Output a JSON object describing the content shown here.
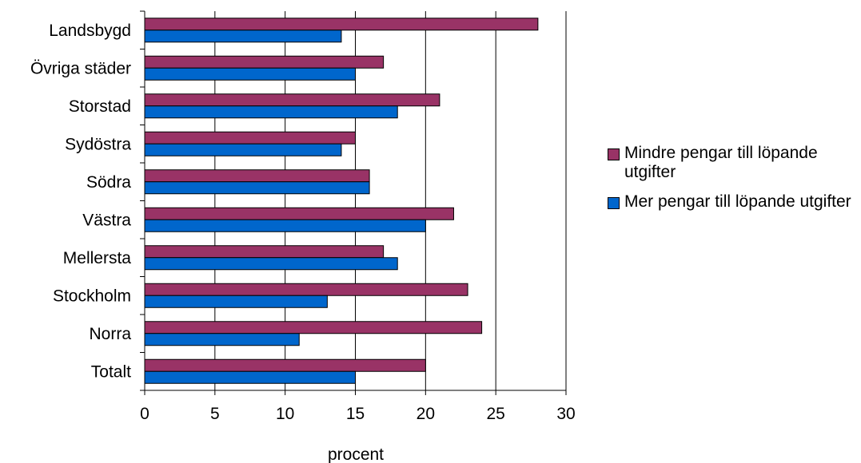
{
  "chart_data": {
    "type": "bar",
    "orientation": "horizontal",
    "categories": [
      "Landsbygd",
      "Övriga städer",
      "Storstad",
      "Sydöstra",
      "Södra",
      "Västra",
      "Mellersta",
      "Stockholm",
      "Norra",
      "Totalt"
    ],
    "series": [
      {
        "name": "Mindre pengar till löpande utgifter",
        "color": "#993366",
        "values": [
          28,
          17,
          21,
          15,
          16,
          22,
          17,
          23,
          24,
          20
        ]
      },
      {
        "name": "Mer pengar till löpande utgifter",
        "color": "#0066CC",
        "values": [
          14,
          15,
          18,
          14,
          16,
          20,
          18,
          13,
          11,
          15
        ]
      }
    ],
    "xlabel": "procent",
    "xlim": [
      0,
      30
    ],
    "xticks": [
      0,
      5,
      10,
      15,
      20,
      25,
      30
    ],
    "grid": "vertical",
    "legend_position": "right"
  }
}
